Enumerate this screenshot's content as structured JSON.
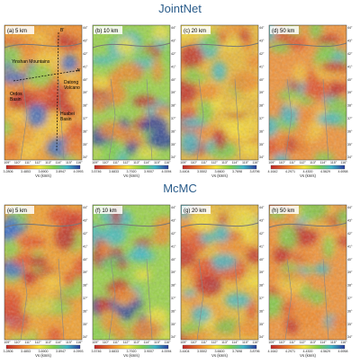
{
  "rows": [
    {
      "title": "JointNet",
      "panels": [
        {
          "label": "(a) 5 km",
          "colorbar": [
            "3.2806",
            "3.4853",
            "3.6900",
            "3.8947",
            "4.0993"
          ]
        },
        {
          "label": "(b) 10 km",
          "colorbar": [
            "3.5746",
            "3.6833",
            "3.7920",
            "3.9007",
            "4.0094"
          ]
        },
        {
          "label": "(c) 20 km",
          "colorbar": [
            "3.4404",
            "3.5502",
            "3.6600",
            "3.7698",
            "3.8796"
          ]
        },
        {
          "label": "(d) 50 km",
          "colorbar": [
            "4.1642",
            "4.2971",
            "4.4300",
            "4.5629",
            "4.6958"
          ]
        }
      ]
    },
    {
      "title": "McMC",
      "panels": [
        {
          "label": "(e) 5 km",
          "colorbar": [
            "3.2806",
            "3.4853",
            "3.6900",
            "3.8947",
            "4.0993"
          ]
        },
        {
          "label": "(f) 10 km",
          "colorbar": [
            "3.5746",
            "3.6833",
            "3.7920",
            "3.9007",
            "4.0094"
          ]
        },
        {
          "label": "(g) 20 km",
          "colorbar": [
            "3.4404",
            "3.5502",
            "3.6600",
            "3.7698",
            "3.8796"
          ]
        },
        {
          "label": "(h) 50 km",
          "colorbar": [
            "4.1642",
            "4.2971",
            "4.4300",
            "4.5629",
            "4.6958"
          ]
        }
      ]
    }
  ],
  "axis_label": "Vs (km/s)",
  "lon_ticks": [
    "109°",
    "110°",
    "111°",
    "112°",
    "113°",
    "114°",
    "115°",
    "116°"
  ],
  "lat_ticks": [
    "44°",
    "43°",
    "42°",
    "41°",
    "40°",
    "39°",
    "38°",
    "37°",
    "36°",
    "35°",
    "34°"
  ],
  "annotations": [
    "Yinshan Mountains",
    "Ordos",
    "Basin",
    "Datong",
    "Volcano",
    "Huabei",
    "Basin",
    "B'",
    "A'"
  ]
}
